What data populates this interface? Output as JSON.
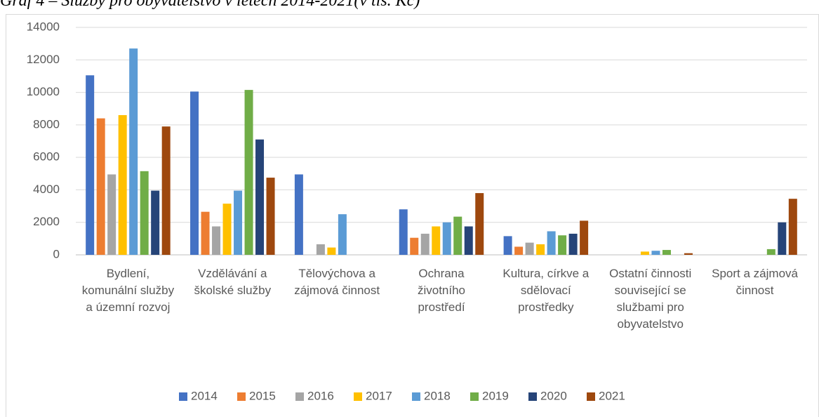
{
  "chart_data": {
    "type": "bar",
    "title": "Graf 4 – Služby pro obyvatelstvo v letech 2014-2021(v tis. Kč)",
    "categories": [
      "Bydlení, komunální služby a územní rozvoj",
      "Vzdělávání a školské služby",
      "Tělovýchova a zájmová činnost",
      "Ochrana životního prostředí",
      "Kultura, církve a sdělovací prostředky",
      "Ostatní činnosti související se službami pro obyvatelstvo",
      "Sport a zájmová činnost"
    ],
    "series": [
      {
        "name": "2014",
        "color": "#4472c4",
        "values": [
          11050,
          10050,
          4950,
          2800,
          1150,
          0,
          0
        ]
      },
      {
        "name": "2015",
        "color": "#ed7d31",
        "values": [
          8400,
          2650,
          0,
          1050,
          500,
          0,
          0
        ]
      },
      {
        "name": "2016",
        "color": "#a5a5a5",
        "values": [
          4950,
          1750,
          650,
          1300,
          750,
          0,
          0
        ]
      },
      {
        "name": "2017",
        "color": "#ffc000",
        "values": [
          8600,
          3150,
          450,
          1750,
          650,
          200,
          0
        ]
      },
      {
        "name": "2018",
        "color": "#5b9bd5",
        "values": [
          12700,
          3950,
          2500,
          2000,
          1450,
          250,
          0
        ]
      },
      {
        "name": "2019",
        "color": "#70ad47",
        "values": [
          5150,
          10150,
          0,
          2350,
          1200,
          300,
          350
        ]
      },
      {
        "name": "2020",
        "color": "#264478",
        "values": [
          3950,
          7100,
          0,
          1750,
          1300,
          0,
          2000
        ]
      },
      {
        "name": "2021",
        "color": "#9e480e",
        "values": [
          7900,
          4750,
          0,
          3800,
          2100,
          100,
          3450
        ]
      }
    ],
    "ylim": [
      0,
      14000
    ],
    "yticks": [
      0,
      2000,
      4000,
      6000,
      8000,
      10000,
      12000,
      14000
    ],
    "grid": true,
    "legend": "bottom"
  }
}
